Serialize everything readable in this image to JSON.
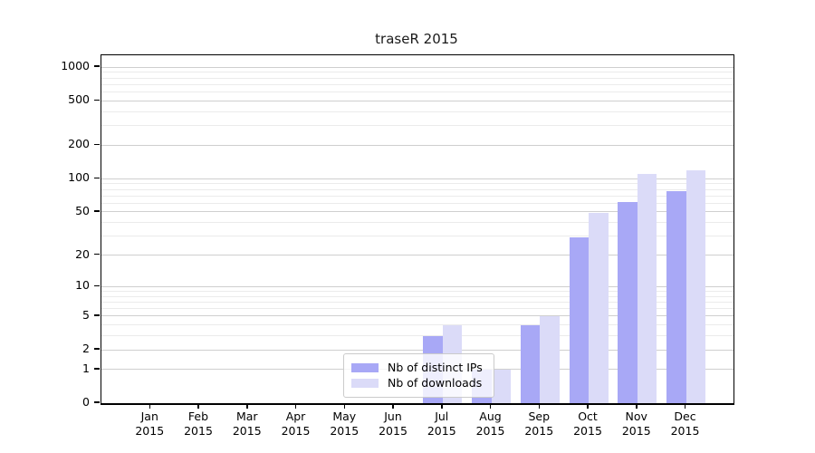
{
  "chart_data": {
    "type": "bar",
    "title": "traseR 2015",
    "categories": [
      "Jan",
      "Feb",
      "Mar",
      "Apr",
      "May",
      "Jun",
      "Jul",
      "Aug",
      "Sep",
      "Oct",
      "Nov",
      "Dec"
    ],
    "category_year": "2015",
    "series": [
      {
        "name": "Nb of distinct IPs",
        "color": "#a8a8f6",
        "values": [
          0,
          0,
          0,
          0,
          0,
          0,
          3,
          1,
          4,
          29,
          61,
          77
        ]
      },
      {
        "name": "Nb of downloads",
        "color": "#dbdbf8",
        "values": [
          0,
          0,
          0,
          0,
          0,
          0,
          4,
          1,
          5,
          49,
          110,
          118
        ]
      }
    ],
    "yticks": [
      0,
      1,
      2,
      5,
      10,
      20,
      50,
      100,
      200,
      500,
      1000
    ],
    "scale": "log1p",
    "ylim": [
      0,
      1278
    ],
    "grid": true,
    "legend_position": "inside-bottom-center",
    "xlabel": "",
    "ylabel": ""
  }
}
